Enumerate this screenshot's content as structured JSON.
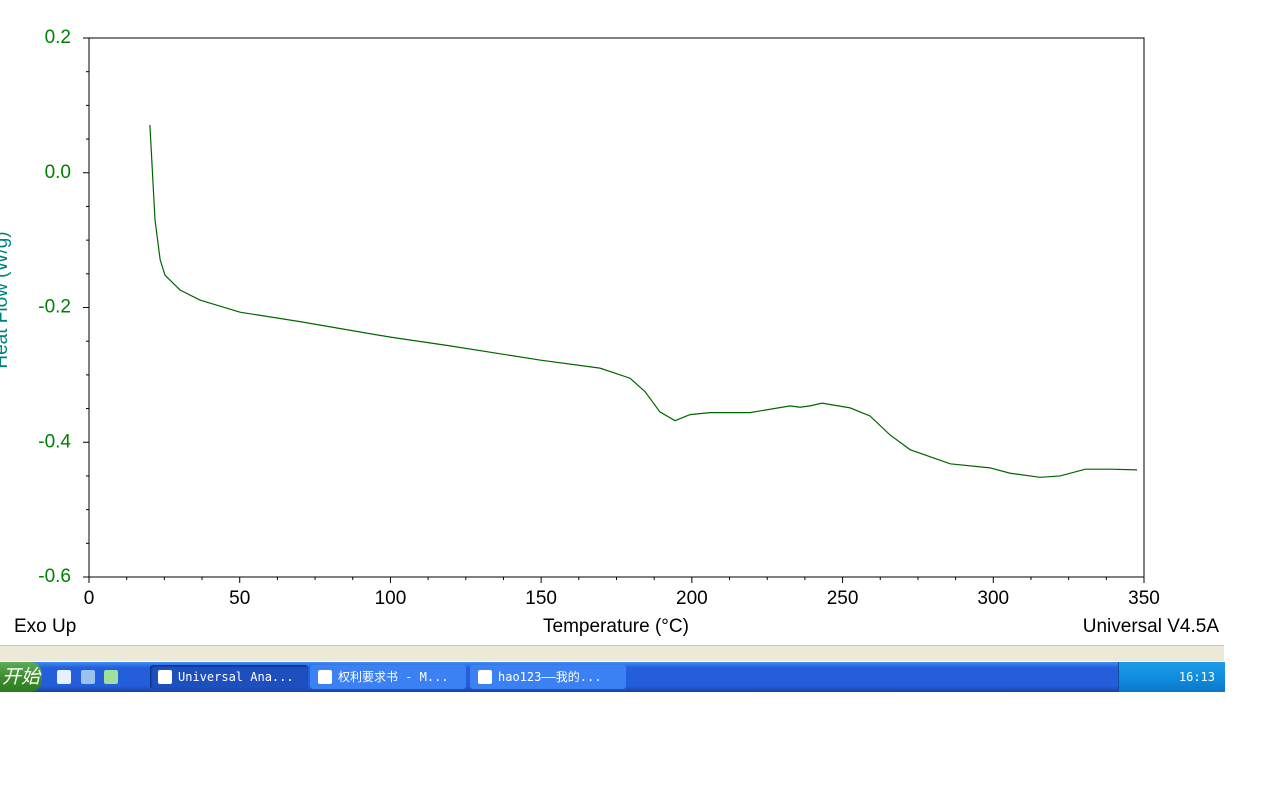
{
  "chart_data": {
    "type": "line",
    "ylabel": "Heat Flow (W/g)",
    "xlabel": "Temperature (°C)",
    "annotations": [
      "Exo Up",
      "Universal V4.5A"
    ],
    "xlim": [
      0,
      350
    ],
    "xticks": [
      0,
      50,
      100,
      150,
      200,
      250,
      300,
      350
    ],
    "minor_xticks": [
      12.5,
      25,
      37.5,
      62.5,
      75,
      87.5,
      112.5,
      125,
      137.5,
      162.5,
      175,
      187.5,
      212.5,
      225,
      237.5,
      262.5,
      275,
      287.5,
      312.5,
      325,
      337.5
    ],
    "ylim": [
      -0.6,
      0.2
    ],
    "yticks": [
      {
        "value": 0.2,
        "label": "0.2"
      },
      {
        "value": 0,
        "label": "0.0"
      },
      {
        "value": -0.2,
        "label": "-0.2"
      },
      {
        "value": -0.4,
        "label": "-0.4"
      },
      {
        "value": -0.6,
        "label": "-0.6"
      }
    ],
    "minor_yticks": [
      0.15,
      0.1,
      0.05,
      -0.05,
      -0.1,
      -0.15,
      -0.25,
      -0.3,
      -0.35,
      -0.45,
      -0.5,
      -0.55
    ],
    "axis_color": "#008000",
    "ylabel_color": "#008080",
    "series": [
      {
        "color": "#006400",
        "x": [
          20.2,
          21.9,
          23.6,
          25.2,
          30.2,
          36.8,
          50.1,
          70,
          100,
          119.8,
          149.6,
          169.5,
          179.5,
          184.5,
          189.4,
          194.4,
          199.4,
          206,
          219.3,
          232.6,
          235.9,
          239.2,
          243.2,
          252.5,
          259.1,
          265.7,
          272.4,
          285.7,
          298.9,
          305.6,
          315.5,
          322.2,
          330.5,
          338.8,
          347.7
        ],
        "values": [
          0.071,
          -0.07,
          -0.129,
          -0.152,
          -0.174,
          -0.189,
          -0.207,
          -0.221,
          -0.244,
          -0.257,
          -0.278,
          -0.29,
          -0.305,
          -0.325,
          -0.355,
          -0.368,
          -0.359,
          -0.356,
          -0.356,
          -0.346,
          -0.348,
          -0.346,
          -0.342,
          -0.349,
          -0.361,
          -0.389,
          -0.411,
          -0.432,
          -0.438,
          -0.446,
          -0.452,
          -0.45,
          -0.44,
          -0.44,
          -0.441
        ]
      }
    ]
  },
  "taskbar": {
    "start": "开始",
    "tasks": [
      "Universal Ana...",
      "权利要求书 - M...",
      "hao123——我的..."
    ],
    "clock": "16:13"
  }
}
